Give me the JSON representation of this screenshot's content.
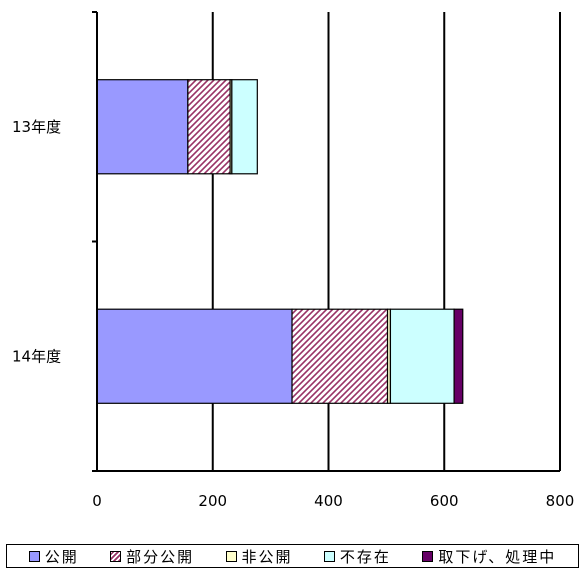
{
  "chart_data": {
    "type": "bar",
    "orientation": "horizontal",
    "stacked": true,
    "categories": [
      "13年度",
      "14年度"
    ],
    "series": [
      {
        "name": "公開",
        "values": [
          157,
          337
        ],
        "color": "#9999ff",
        "pattern": "solid"
      },
      {
        "name": "部分公開",
        "values": [
          73,
          165
        ],
        "color": "#993366",
        "pattern": "diagonal-hatch"
      },
      {
        "name": "非公開",
        "values": [
          3,
          5
        ],
        "color": "#ffffcc",
        "pattern": "solid"
      },
      {
        "name": "不存在",
        "values": [
          44,
          110
        ],
        "color": "#ccffff",
        "pattern": "solid"
      },
      {
        "name": "取下げ、処理中",
        "values": [
          0,
          15
        ],
        "color": "#660066",
        "pattern": "solid"
      }
    ],
    "xlim": [
      0,
      800
    ],
    "xticks": [
      "0",
      "200",
      "400",
      "600",
      "800"
    ],
    "grid": true,
    "legend_position": "bottom",
    "title": "",
    "xlabel": "",
    "ylabel": ""
  }
}
